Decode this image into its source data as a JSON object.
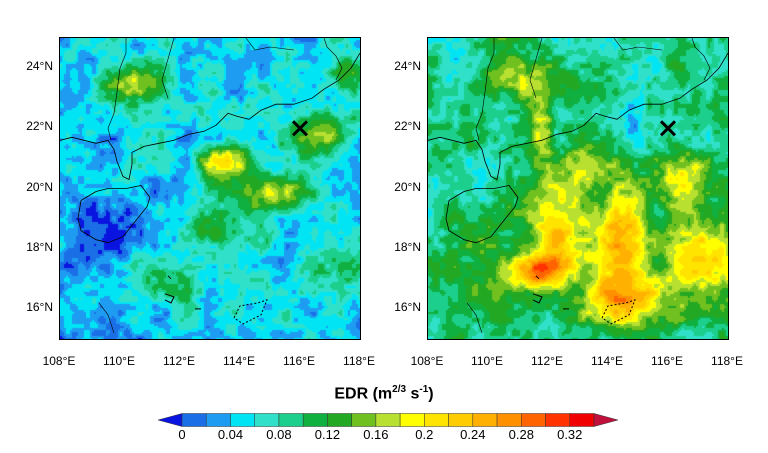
{
  "colorbar": {
    "title_main": "EDR (m",
    "title_sup1": "2/3",
    "title_mid": " s",
    "title_sup2": "-1",
    "title_end": ")",
    "levels": [
      0,
      0.02,
      0.04,
      0.06,
      0.08,
      0.1,
      0.12,
      0.14,
      0.16,
      0.18,
      0.2,
      0.22,
      0.24,
      0.26,
      0.28,
      0.3,
      0.32,
      0.34
    ],
    "tick_labels": [
      "0",
      "0.04",
      "0.08",
      "0.12",
      "0.16",
      "0.2",
      "0.24",
      "0.28",
      "0.32"
    ],
    "under_color": "#0a14e0",
    "over_color": "#c0103c",
    "colors": [
      "#1a6fe6",
      "#1e9cf2",
      "#00e4f4",
      "#30e0c8",
      "#1ccf8c",
      "#10b040",
      "#22a822",
      "#70c020",
      "#b8e030",
      "#ffff00",
      "#ffe400",
      "#ffcc00",
      "#ffb000",
      "#ff9000",
      "#ff6400",
      "#ff3200",
      "#f00000"
    ]
  },
  "axes": {
    "lon_range": [
      108,
      118
    ],
    "lat_range": [
      15,
      25
    ],
    "x_ticks": [
      "108°E",
      "110°E",
      "112°E",
      "114°E",
      "116°E",
      "118°E"
    ],
    "y_ticks": [
      "16°N",
      "18°N",
      "20°N",
      "22°N",
      "24°N"
    ]
  },
  "marker": {
    "symbol": "X",
    "lon": 116,
    "lat": 22,
    "color": "#000000"
  },
  "panels": [
    {
      "id": "left"
    },
    {
      "id": "right"
    }
  ]
}
